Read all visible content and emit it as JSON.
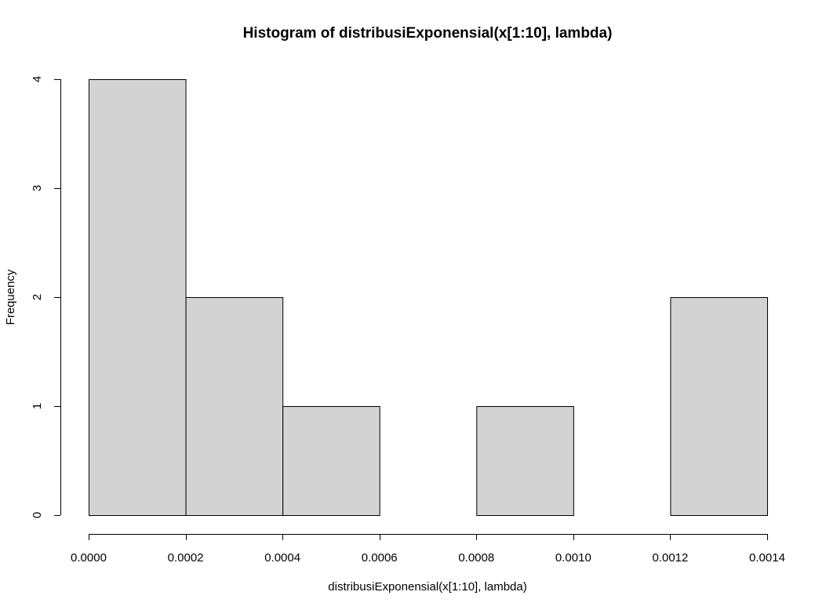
{
  "chart_data": {
    "type": "bar",
    "title": "Histogram of distribusiExponensial(x[1:10], lambda)",
    "xlabel": "distribusiExponensial(x[1:10], lambda)",
    "ylabel": "Frequency",
    "bins": [
      {
        "from": 0.0,
        "to": 0.0002,
        "count": 4
      },
      {
        "from": 0.0002,
        "to": 0.0004,
        "count": 2
      },
      {
        "from": 0.0004,
        "to": 0.0006,
        "count": 1
      },
      {
        "from": 0.0006,
        "to": 0.0008,
        "count": 0
      },
      {
        "from": 0.0008,
        "to": 0.001,
        "count": 1
      },
      {
        "from": 0.001,
        "to": 0.0012,
        "count": 0
      },
      {
        "from": 0.0012,
        "to": 0.0014,
        "count": 2
      }
    ],
    "xlim": [
      0,
      0.0014
    ],
    "ylim": [
      0,
      4
    ],
    "x_ticks": [
      0.0,
      0.0002,
      0.0004,
      0.0006,
      0.0008,
      0.001,
      0.0012,
      0.0014
    ],
    "x_tick_labels": [
      "0.0000",
      "0.0002",
      "0.0004",
      "0.0006",
      "0.0008",
      "0.0010",
      "0.0012",
      "0.0014"
    ],
    "y_ticks": [
      0,
      1,
      2,
      3,
      4
    ],
    "y_tick_labels": [
      "0",
      "1",
      "2",
      "3",
      "4"
    ],
    "grid": false,
    "bar_color": "#d3d3d3",
    "bar_edge_color": "#000000"
  }
}
